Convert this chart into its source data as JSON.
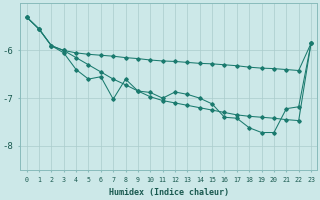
{
  "xlabel": "Humidex (Indice chaleur)",
  "bg_color": "#cce8e8",
  "grid_color": "#aacccc",
  "line_color": "#1a7a6e",
  "x_values": [
    0,
    1,
    2,
    3,
    4,
    5,
    6,
    7,
    8,
    9,
    10,
    11,
    12,
    13,
    14,
    15,
    16,
    17,
    18,
    19,
    20,
    21,
    22,
    23
  ],
  "series1": [
    -5.3,
    -5.55,
    -5.9,
    -6.0,
    -6.05,
    -6.08,
    -6.1,
    -6.12,
    -6.15,
    -6.17,
    -6.2,
    -6.22,
    -6.23,
    -6.25,
    -6.27,
    -6.28,
    -6.3,
    -6.32,
    -6.35,
    -6.37,
    -6.38,
    -6.4,
    -6.42,
    -5.85
  ],
  "series2": [
    -5.3,
    -5.55,
    -5.9,
    -6.0,
    -6.15,
    -6.3,
    -6.45,
    -6.6,
    -6.72,
    -6.85,
    -6.97,
    -7.05,
    -7.1,
    -7.15,
    -7.2,
    -7.25,
    -7.3,
    -7.35,
    -7.38,
    -7.4,
    -7.42,
    -7.45,
    -7.47,
    -5.85
  ],
  "series3": [
    -5.3,
    -5.55,
    -5.9,
    -6.05,
    -6.4,
    -6.6,
    -6.55,
    -7.02,
    -6.6,
    -6.85,
    -6.88,
    -7.0,
    -6.87,
    -6.92,
    -7.0,
    -7.12,
    -7.4,
    -7.42,
    -7.62,
    -7.72,
    -7.72,
    -7.22,
    -7.18,
    -5.85
  ],
  "ylim": [
    -8.5,
    -5.0
  ],
  "xlim": [
    -0.5,
    23.5
  ],
  "yticks": [
    -8,
    -7,
    -6
  ],
  "xticks": [
    0,
    1,
    2,
    3,
    4,
    5,
    6,
    7,
    8,
    9,
    10,
    11,
    12,
    13,
    14,
    15,
    16,
    17,
    18,
    19,
    20,
    21,
    22,
    23
  ],
  "xlabel_fontsize": 6.0,
  "xtick_fontsize": 4.8,
  "ytick_fontsize": 6.5
}
